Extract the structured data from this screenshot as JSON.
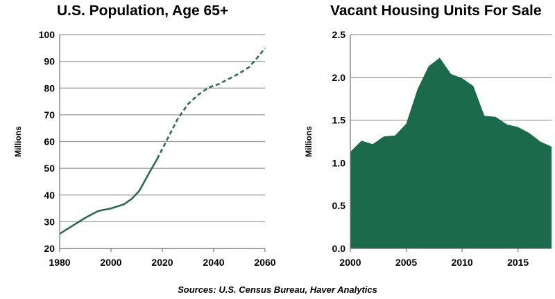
{
  "chart_data": [
    {
      "type": "line",
      "title": "U.S. Population, Age 65+",
      "ylabel": "Millions",
      "xlabel": "",
      "xlim": [
        1980,
        2060
      ],
      "ylim": [
        20,
        100
      ],
      "xticks": [
        1980,
        2000,
        2020,
        2040,
        2060
      ],
      "yticks": [
        20,
        30,
        40,
        50,
        60,
        70,
        80,
        90,
        100
      ],
      "grid": "horizontal",
      "line_color": "#2e6b4c",
      "series": [
        {
          "style": "solid",
          "x": [
            1980,
            1985,
            1990,
            1995,
            2000,
            2005,
            2008,
            2011,
            2015,
            2018
          ],
          "y": [
            25.5,
            28.5,
            31.5,
            34,
            35,
            36.5,
            38.5,
            41.5,
            48.5,
            53.5
          ]
        },
        {
          "style": "dashed",
          "x": [
            2018,
            2022,
            2026,
            2030,
            2034,
            2038,
            2042,
            2046,
            2050,
            2054,
            2058,
            2060
          ],
          "y": [
            53.5,
            61,
            68.5,
            74,
            77.5,
            80.2,
            81.5,
            83.5,
            85.5,
            88,
            92.5,
            95
          ]
        }
      ]
    },
    {
      "type": "area",
      "title": "Vacant Housing Units For Sale",
      "ylabel": "Millions",
      "xlabel": "",
      "xlim": [
        2000,
        2018
      ],
      "ylim": [
        0,
        2.5
      ],
      "xticks": [
        2000,
        2005,
        2010,
        2015
      ],
      "yticks": [
        "0.0",
        "0.5",
        "1.0",
        "1.5",
        "2.0",
        "2.5"
      ],
      "grid": "horizontal",
      "fill_color": "#1a6a4b",
      "series": [
        {
          "x": [
            2000,
            2001,
            2002,
            2003,
            2004,
            2005,
            2006,
            2007,
            2008,
            2009,
            2010,
            2011,
            2012,
            2013,
            2014,
            2015,
            2016,
            2017,
            2018
          ],
          "y": [
            1.13,
            1.26,
            1.22,
            1.31,
            1.32,
            1.46,
            1.86,
            2.13,
            2.23,
            2.04,
            1.99,
            1.9,
            1.55,
            1.54,
            1.45,
            1.42,
            1.35,
            1.25,
            1.19
          ]
        }
      ]
    }
  ],
  "footer": {
    "source": "Sources: U.S. Census Bureau, Haver Analytics"
  }
}
